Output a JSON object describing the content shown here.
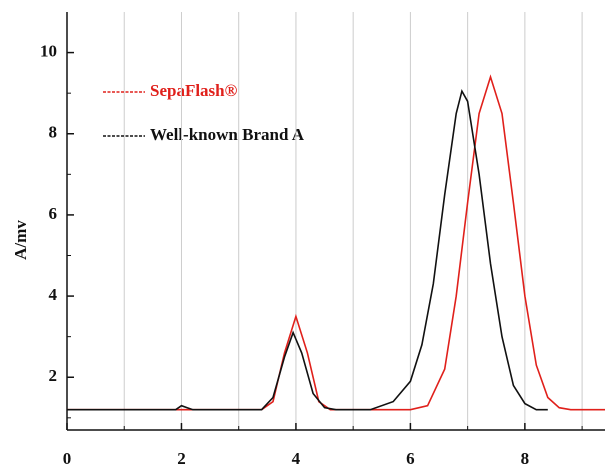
{
  "chart_data": {
    "type": "line",
    "ylabel": "A/mv",
    "xlim": [
      0,
      9.4
    ],
    "xticks": [
      0,
      2,
      4,
      6,
      8
    ],
    "xminor_ticks": [
      1,
      3,
      5,
      7,
      9
    ],
    "ylim": [
      0.7,
      11
    ],
    "yticks": [
      2,
      4,
      6,
      8,
      10
    ],
    "yminor_ticks": [
      1,
      3,
      5,
      7,
      9
    ],
    "grid": "x",
    "legend": "upper left",
    "series": [
      {
        "name": "SepaFlash®",
        "color": "#e0201b",
        "x": [
          0,
          2,
          3.4,
          3.6,
          3.8,
          4.0,
          4.2,
          4.4,
          4.6,
          6.0,
          6.3,
          6.6,
          6.8,
          7.0,
          7.2,
          7.4,
          7.6,
          7.8,
          8.0,
          8.2,
          8.4,
          8.6,
          8.8,
          9.4
        ],
        "values": [
          1.2,
          1.2,
          1.2,
          1.4,
          2.6,
          3.5,
          2.6,
          1.4,
          1.2,
          1.2,
          1.3,
          2.2,
          4.0,
          6.3,
          8.5,
          9.4,
          8.5,
          6.3,
          4.0,
          2.3,
          1.5,
          1.25,
          1.2,
          1.2
        ]
      },
      {
        "name": "Well-known Brand A",
        "color": "#111111",
        "x": [
          0,
          1.9,
          2.0,
          2.1,
          2.2,
          3.4,
          3.6,
          3.8,
          3.95,
          4.1,
          4.3,
          4.5,
          4.7,
          5.3,
          5.7,
          6.0,
          6.2,
          6.4,
          6.6,
          6.8,
          6.9,
          7.0,
          7.2,
          7.4,
          7.6,
          7.8,
          8.0,
          8.2,
          8.4
        ],
        "values": [
          1.2,
          1.2,
          1.3,
          1.25,
          1.2,
          1.2,
          1.5,
          2.5,
          3.1,
          2.6,
          1.6,
          1.25,
          1.2,
          1.2,
          1.4,
          1.9,
          2.8,
          4.3,
          6.5,
          8.5,
          9.05,
          8.8,
          7.0,
          4.8,
          3.0,
          1.8,
          1.35,
          1.2,
          1.2
        ]
      }
    ]
  }
}
